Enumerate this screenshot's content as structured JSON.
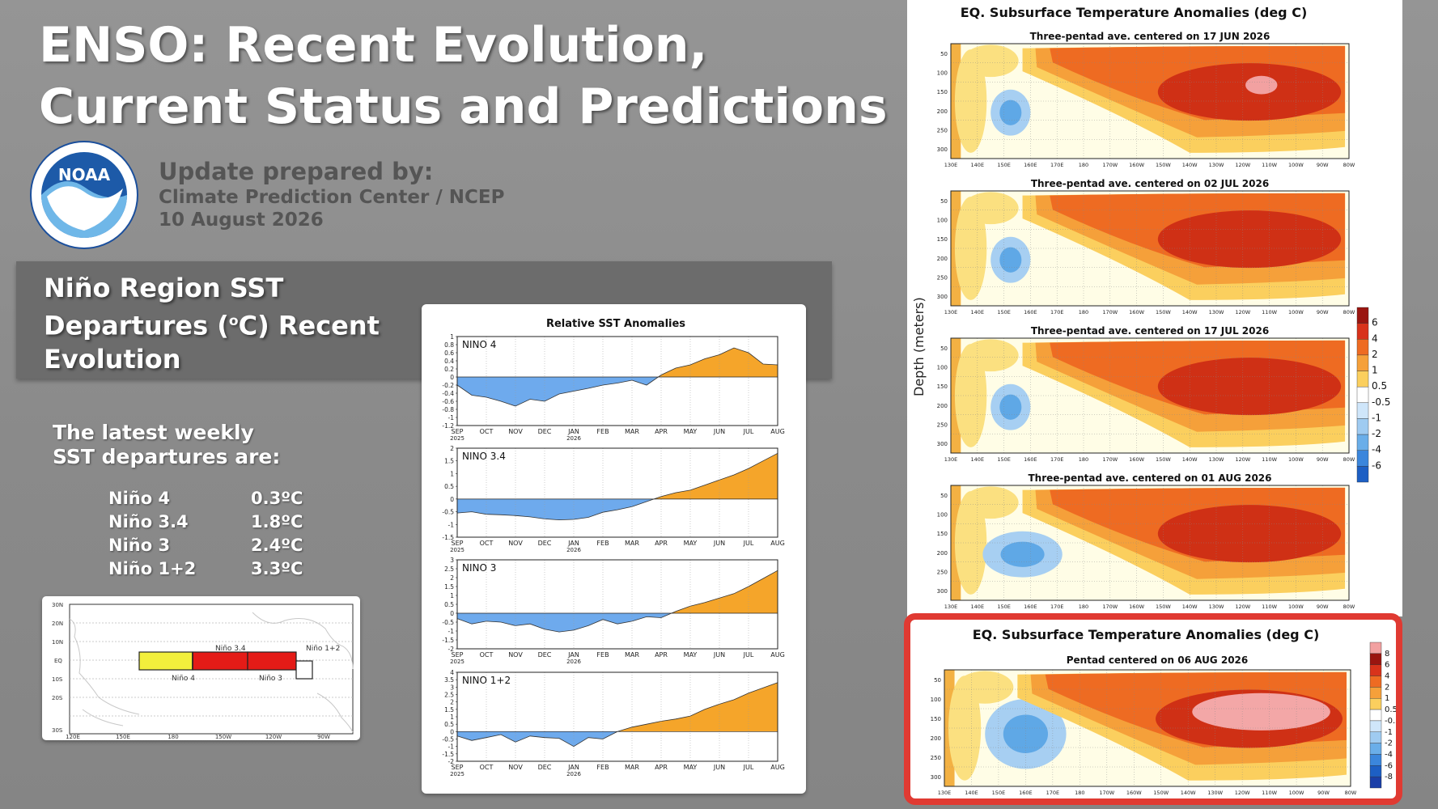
{
  "header": {
    "title_line1": "ENSO: Recent Evolution,",
    "title_line2": "Current Status and Predictions",
    "update_heading": "Update prepared by:",
    "update_org": "Climate Prediction Center / NCEP",
    "update_date": "10 August 2026"
  },
  "logo": {
    "text": "NOAA",
    "icon": "noaa-seal"
  },
  "section": {
    "title_line1": "Niño Region SST",
    "title_line2_pre": "Departures (",
    "title_line2_sup": "o",
    "title_line2_post": "C) Recent",
    "title_line3": "Evolution"
  },
  "latest": {
    "line1": "The latest weekly",
    "line2": "SST departures are:"
  },
  "sst_departures": [
    {
      "region": "Niño 4",
      "value": "0.3ºC"
    },
    {
      "region": "Niño 3.4",
      "value": "1.8ºC"
    },
    {
      "region": "Niño 3",
      "value": "2.4ºC"
    },
    {
      "region": "Niño 1+2",
      "value": "3.3ºC"
    }
  ],
  "map": {
    "lat_labels": [
      "30N",
      "20N",
      "10N",
      "EQ",
      "10S",
      "20S",
      "30S"
    ],
    "lon_labels": [
      "120E",
      "150E",
      "180",
      "150W",
      "120W",
      "90W"
    ],
    "regions": [
      {
        "name": "Niño 4",
        "color": "#f2ef3c"
      },
      {
        "name": "Niño 3.4",
        "color": "#e41b17"
      },
      {
        "name": "Niño 3",
        "color": "#e41b17"
      },
      {
        "name": "Niño 1+2",
        "color": "#ffffff"
      }
    ]
  },
  "colors": {
    "positive": "#f5a52a",
    "negative": "#6eaaed",
    "highlight_border": "#e03a32"
  },
  "chart_data": [
    {
      "type": "area",
      "title": "Relative SST Anomalies",
      "x_tick_labels": [
        "SEP",
        "OCT",
        "NOV",
        "DEC",
        "JAN",
        "FEB",
        "MAR",
        "APR",
        "MAY",
        "JUN",
        "JUL",
        "AUG"
      ],
      "x_tick_years": [
        "2025",
        "",
        "",
        "",
        "2026",
        "",
        "",
        "",
        "",
        "",
        "",
        ""
      ],
      "panels": [
        {
          "name": "NINO  4",
          "ylim": [
            -1.2,
            1
          ],
          "yticks": [
            "1",
            "0.8",
            "0.6",
            "0.4",
            "0.2",
            "0",
            "-0.2",
            "-0.4",
            "-0.6",
            "-0.8",
            "-1",
            "-1.2"
          ],
          "x": [
            0,
            0.5,
            1,
            1.5,
            2,
            2.5,
            3,
            3.5,
            4,
            4.5,
            5,
            5.5,
            6,
            6.5,
            7,
            7.5,
            8,
            8.5,
            9,
            9.5,
            10,
            10.5,
            11
          ],
          "values": [
            -0.2,
            -0.45,
            -0.5,
            -0.6,
            -0.72,
            -0.55,
            -0.6,
            -0.42,
            -0.35,
            -0.28,
            -0.2,
            -0.15,
            -0.08,
            -0.2,
            0.05,
            0.22,
            0.3,
            0.45,
            0.55,
            0.72,
            0.6,
            0.32,
            0.3
          ]
        },
        {
          "name": "NINO  3.4",
          "ylim": [
            -1.5,
            2
          ],
          "yticks": [
            "2",
            "1.5",
            "1",
            "0.5",
            "0",
            "-0.5",
            "-1",
            "-1.5"
          ],
          "x": [
            0,
            0.5,
            1,
            1.5,
            2,
            2.5,
            3,
            3.5,
            4,
            4.5,
            5,
            5.5,
            6,
            6.5,
            7,
            7.5,
            8,
            8.5,
            9,
            9.5,
            10,
            10.5,
            11
          ],
          "values": [
            -0.55,
            -0.5,
            -0.6,
            -0.62,
            -0.65,
            -0.7,
            -0.78,
            -0.82,
            -0.8,
            -0.72,
            -0.52,
            -0.42,
            -0.3,
            -0.1,
            0.1,
            0.25,
            0.35,
            0.55,
            0.75,
            0.95,
            1.2,
            1.5,
            1.8
          ]
        },
        {
          "name": "NINO  3",
          "ylim": [
            -2,
            3
          ],
          "yticks": [
            "3",
            "2.5",
            "2",
            "1.5",
            "1",
            "0.5",
            "0",
            "-0.5",
            "-1",
            "-1.5",
            "-2"
          ],
          "x": [
            0,
            0.5,
            1,
            1.5,
            2,
            2.5,
            3,
            3.5,
            4,
            4.5,
            5,
            5.5,
            6,
            6.5,
            7,
            7.5,
            8,
            8.5,
            9,
            9.5,
            10,
            10.5,
            11
          ],
          "values": [
            -0.3,
            -0.6,
            -0.45,
            -0.5,
            -0.7,
            -0.6,
            -0.9,
            -1.05,
            -0.95,
            -0.7,
            -0.35,
            -0.6,
            -0.45,
            -0.2,
            -0.25,
            0.1,
            0.4,
            0.6,
            0.85,
            1.1,
            1.5,
            1.95,
            2.4
          ]
        },
        {
          "name": "NINO  1+2",
          "ylim": [
            -2,
            4
          ],
          "yticks": [
            "4",
            "3.5",
            "3",
            "2.5",
            "2",
            "1.5",
            "1",
            "0.5",
            "0",
            "-0.5",
            "-1",
            "-1.5",
            "-2"
          ],
          "x": [
            0,
            0.5,
            1,
            1.5,
            2,
            2.5,
            3,
            3.5,
            4,
            4.5,
            5,
            5.5,
            6,
            6.5,
            7,
            7.5,
            8,
            8.5,
            9,
            9.5,
            10,
            10.5,
            11
          ],
          "values": [
            -0.3,
            -0.6,
            -0.4,
            -0.2,
            -0.7,
            -0.3,
            -0.4,
            -0.45,
            -1.0,
            -0.4,
            -0.5,
            0.0,
            0.3,
            0.5,
            0.7,
            0.85,
            1.05,
            1.5,
            1.85,
            2.15,
            2.6,
            2.95,
            3.3
          ]
        }
      ]
    },
    {
      "type": "heatmap",
      "title": "EQ. Subsurface Temperature Anomalies (deg C)",
      "ylabel": "Depth (meters)",
      "x_tick_labels": [
        "130E",
        "140E",
        "150E",
        "160E",
        "170E",
        "180",
        "170W",
        "160W",
        "150W",
        "140W",
        "130W",
        "120W",
        "110W",
        "100W",
        "90W",
        "80W"
      ],
      "y_tick_labels": [
        "50",
        "100",
        "150",
        "200",
        "250",
        "300"
      ],
      "colorbar_labels": [
        "6",
        "4",
        "2",
        "1",
        "0.5",
        "-0.5",
        "-1",
        "-2",
        "-4",
        "-6"
      ],
      "panels": [
        {
          "subtitle": "Three-pentad ave. centered on 17 JUN 2026",
          "peak_anomaly": 6
        },
        {
          "subtitle": "Three-pentad ave. centered on 02 JUL 2026",
          "peak_anomaly": 4
        },
        {
          "subtitle": "Three-pentad ave. centered on 17 JUL 2026",
          "peak_anomaly": 4
        },
        {
          "subtitle": "Three-pentad ave. centered on 01 AUG 2026",
          "peak_anomaly": 4
        }
      ]
    },
    {
      "type": "heatmap",
      "title": "EQ. Subsurface Temperature Anomalies (deg C)",
      "subtitle": "Pentad centered on 06 AUG 2026",
      "x_tick_labels": [
        "130E",
        "140E",
        "150E",
        "160E",
        "170E",
        "180",
        "170W",
        "160W",
        "150W",
        "140W",
        "130W",
        "120W",
        "110W",
        "100W",
        "90W",
        "80W"
      ],
      "y_tick_labels": [
        "50",
        "100",
        "150",
        "200",
        "250",
        "300"
      ],
      "colorbar_labels": [
        "8",
        "6",
        "4",
        "2",
        "1",
        "0.5",
        "-0.5",
        "-1",
        "-2",
        "-4",
        "-6",
        "-8"
      ],
      "peak_anomaly": 8
    }
  ]
}
